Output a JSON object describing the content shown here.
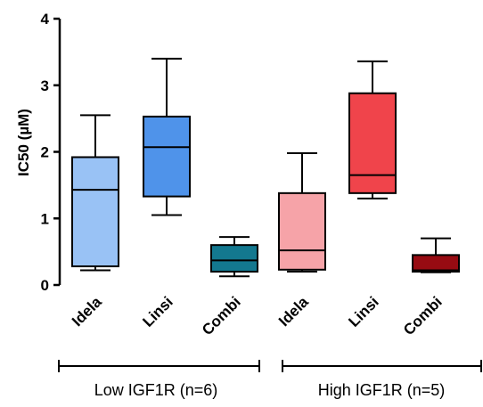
{
  "chart_data": {
    "type": "box",
    "ylabel": "IC50 (µM)",
    "ylim": [
      0,
      4
    ],
    "yticks": [
      0,
      1,
      2,
      3,
      4
    ],
    "categories": [
      "Idela",
      "Linsi",
      "Combi",
      "Idela",
      "Linsi",
      "Combi"
    ],
    "groups": [
      {
        "label": "Low IGF1R (n=6)",
        "categories": [
          0,
          1,
          2
        ]
      },
      {
        "label": "High IGF1R (n=5)",
        "categories": [
          3,
          4,
          5
        ]
      }
    ],
    "boxes": [
      {
        "category": "Idela",
        "min": 0.22,
        "q1": 0.28,
        "median": 1.43,
        "q3": 1.92,
        "max": 2.55,
        "color": "#99c2f5"
      },
      {
        "category": "Linsi",
        "min": 1.05,
        "q1": 1.33,
        "median": 2.07,
        "q3": 2.53,
        "max": 3.4,
        "color": "#4f93ea"
      },
      {
        "category": "Combi",
        "min": 0.13,
        "q1": 0.2,
        "median": 0.37,
        "q3": 0.6,
        "max": 0.72,
        "color": "#13788f"
      },
      {
        "category": "Idela",
        "min": 0.2,
        "q1": 0.23,
        "median": 0.52,
        "q3": 1.38,
        "max": 1.98,
        "color": "#f6a3a8"
      },
      {
        "category": "Linsi",
        "min": 1.3,
        "q1": 1.38,
        "median": 1.65,
        "q3": 2.88,
        "max": 3.36,
        "color": "#f0444b"
      },
      {
        "category": "Combi",
        "min": 0.19,
        "q1": 0.2,
        "median": 0.22,
        "q3": 0.45,
        "max": 0.7,
        "color": "#970b12"
      }
    ]
  }
}
